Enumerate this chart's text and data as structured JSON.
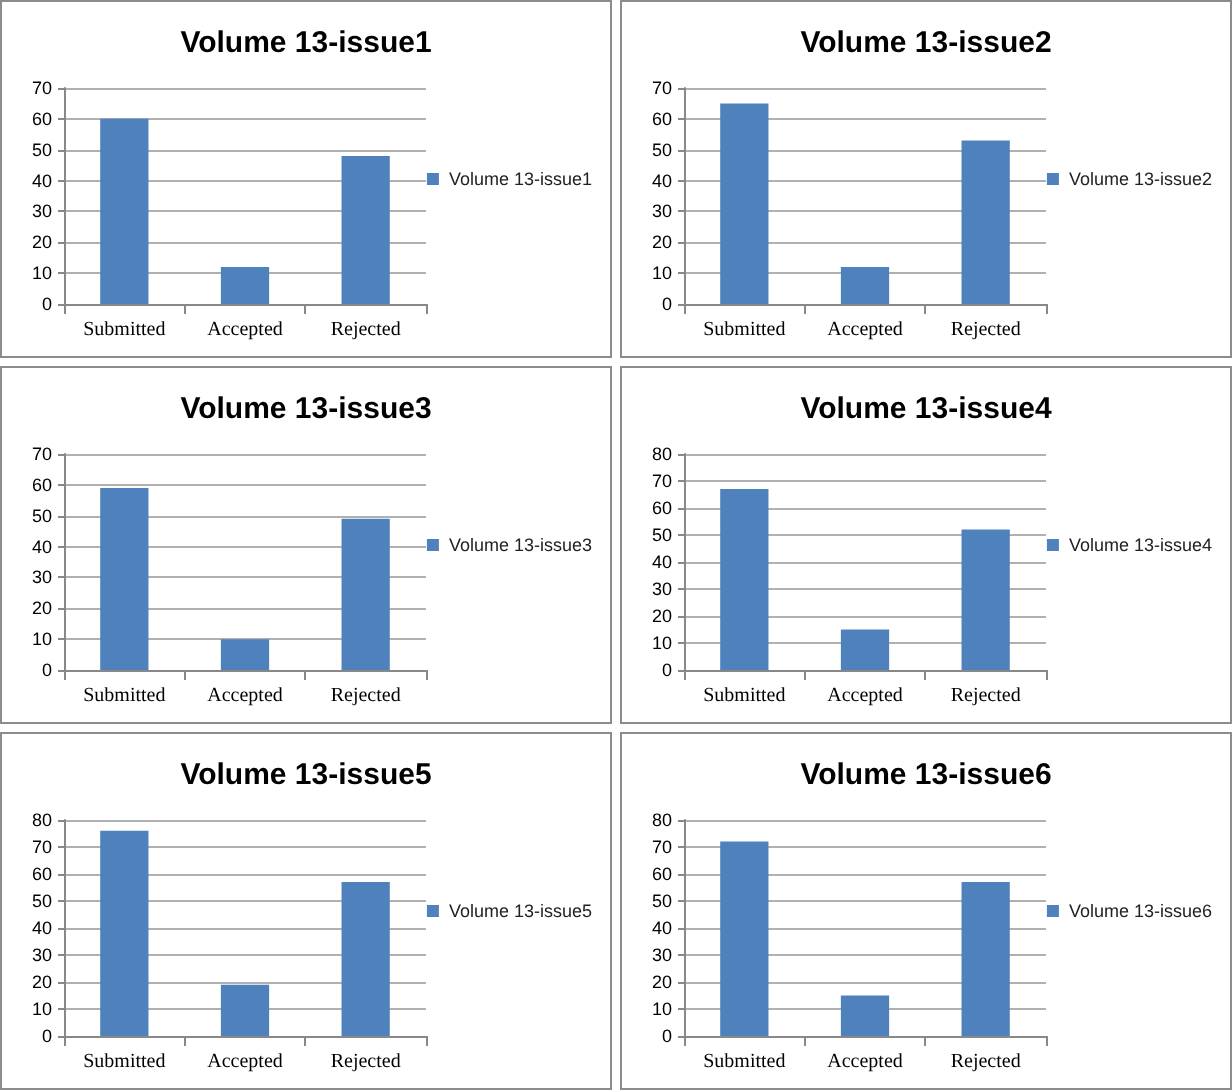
{
  "chart_data": [
    {
      "type": "bar",
      "title": "Volume 13-issue1",
      "categories": [
        "Submitted",
        "Accepted",
        "Rejected"
      ],
      "series": [
        {
          "name": "Volume 13-issue1",
          "color": "#4f81bd",
          "values": [
            60,
            12,
            48
          ]
        }
      ],
      "ylim": [
        0,
        70
      ],
      "yticks": [
        0,
        10,
        20,
        30,
        40,
        50,
        60,
        70
      ],
      "grid": "y",
      "legend": "right"
    },
    {
      "type": "bar",
      "title": "Volume 13-issue2",
      "categories": [
        "Submitted",
        "Accepted",
        "Rejected"
      ],
      "series": [
        {
          "name": "Volume 13-issue2",
          "color": "#4f81bd",
          "values": [
            65,
            12,
            53
          ]
        }
      ],
      "ylim": [
        0,
        70
      ],
      "yticks": [
        0,
        10,
        20,
        30,
        40,
        50,
        60,
        70
      ],
      "grid": "y",
      "legend": "right"
    },
    {
      "type": "bar",
      "title": "Volume 13-issue3",
      "categories": [
        "Submitted",
        "Accepted",
        "Rejected"
      ],
      "series": [
        {
          "name": "Volume 13-issue3",
          "color": "#4f81bd",
          "values": [
            59,
            10,
            49
          ]
        }
      ],
      "ylim": [
        0,
        70
      ],
      "yticks": [
        0,
        10,
        20,
        30,
        40,
        50,
        60,
        70
      ],
      "grid": "y",
      "legend": "right"
    },
    {
      "type": "bar",
      "title": "Volume 13-issue4",
      "categories": [
        "Submitted",
        "Accepted",
        "Rejected"
      ],
      "series": [
        {
          "name": "Volume 13-issue4",
          "color": "#4f81bd",
          "values": [
            67,
            15,
            52
          ]
        }
      ],
      "ylim": [
        0,
        80
      ],
      "yticks": [
        0,
        10,
        20,
        30,
        40,
        50,
        60,
        70,
        80
      ],
      "grid": "y",
      "legend": "right"
    },
    {
      "type": "bar",
      "title": "Volume 13-issue5",
      "categories": [
        "Submitted",
        "Accepted",
        "Rejected"
      ],
      "series": [
        {
          "name": "Volume 13-issue5",
          "color": "#4f81bd",
          "values": [
            76,
            19,
            57
          ]
        }
      ],
      "ylim": [
        0,
        80
      ],
      "yticks": [
        0,
        10,
        20,
        30,
        40,
        50,
        60,
        70,
        80
      ],
      "grid": "y",
      "legend": "right"
    },
    {
      "type": "bar",
      "title": "Volume 13-issue6",
      "categories": [
        "Submitted",
        "Accepted",
        "Rejected"
      ],
      "series": [
        {
          "name": "Volume 13-issue6",
          "color": "#4f81bd",
          "values": [
            72,
            15,
            57
          ]
        }
      ],
      "ylim": [
        0,
        80
      ],
      "yticks": [
        0,
        10,
        20,
        30,
        40,
        50,
        60,
        70,
        80
      ],
      "grid": "y",
      "legend": "right"
    }
  ]
}
